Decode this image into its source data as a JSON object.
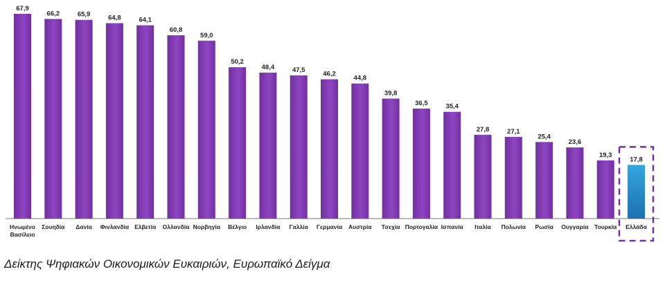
{
  "chart_data": {
    "type": "bar",
    "categories": [
      "Ηνωμένο Βασίλειο",
      "Σουηδία",
      "Δανία",
      "Φινλανδία",
      "Ελβετία",
      "Ολλανδία",
      "Νορβηγία",
      "Βέλγιο",
      "Ιρλανδία",
      "Γαλλία",
      "Γερμανία",
      "Αυστρία",
      "Τσεχία",
      "Πορτογαλία",
      "Ισπανία",
      "Ιταλία",
      "Πολωνία",
      "Ρωσία",
      "Ουγγαρία",
      "Τουρκία",
      "Ελλάδα"
    ],
    "category_lines": [
      [
        "Ηνωμένο",
        "Βασίλειο"
      ],
      [
        "Σουηδία"
      ],
      [
        "Δανία"
      ],
      [
        "Φινλανδία"
      ],
      [
        "Ελβετία"
      ],
      [
        "Ολλανδία"
      ],
      [
        "Νορβηγία"
      ],
      [
        "Βέλγιο"
      ],
      [
        "Ιρλανδία"
      ],
      [
        "Γαλλία"
      ],
      [
        "Γερμανία"
      ],
      [
        "Αυστρία"
      ],
      [
        "Τσεχία"
      ],
      [
        "Πορτογαλία"
      ],
      [
        "Ισπανία"
      ],
      [
        "Ιταλία"
      ],
      [
        "Πολωνία"
      ],
      [
        "Ρωσία"
      ],
      [
        "Ουγγαρία"
      ],
      [
        "Τουρκία"
      ],
      [
        "Ελλάδα"
      ]
    ],
    "values": [
      67.9,
      66.2,
      65.9,
      64.8,
      64.1,
      60.8,
      59.0,
      50.2,
      48.4,
      47.5,
      46.2,
      44.8,
      39.8,
      36.5,
      35.4,
      27.8,
      27.1,
      25.4,
      23.6,
      19.3,
      17.8
    ],
    "value_labels": [
      "67,9",
      "66,2",
      "65,9",
      "64,8",
      "64,1",
      "60,8",
      "59,0",
      "50,2",
      "48,4",
      "47,5",
      "46,2",
      "44,8",
      "39,8",
      "36,5",
      "35,4",
      "27,8",
      "27,1",
      "25,4",
      "23,6",
      "19,3",
      "17,8"
    ],
    "highlight_category": "Ελλάδα",
    "ylim": [
      0,
      67.9
    ],
    "grid": false,
    "colors": {
      "bar": "#7030A0",
      "bar_light": "#8f45c2",
      "highlight_top": "#35a6e0",
      "highlight_bottom": "#1e6fb0",
      "dash_box": "#7030A0",
      "axis": "#777777"
    }
  },
  "caption": "Δείκτης Ψηφιακών Οικονομικών Ευκαιριών, Ευρωπαϊκό Δείγμα"
}
